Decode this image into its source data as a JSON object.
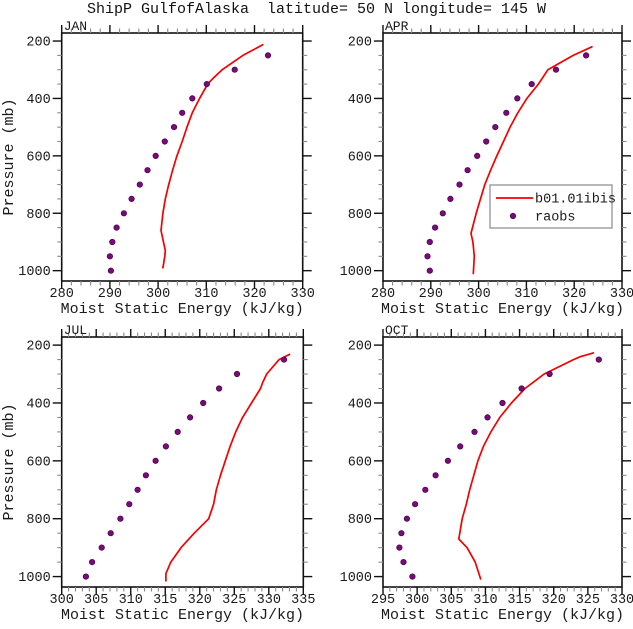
{
  "title": "ShipP GulfofAlaska  latitude= 50 N longitude= 145 W",
  "colors": {
    "model_line": "#f40000",
    "raobs_dot": "#7a0b7a",
    "raobs_dot_edge": "#4d074d",
    "axis": "#111111",
    "minor_tick": "#8a8a8a",
    "legend_border": "#a0a0a0",
    "text": "#1a1a1a"
  },
  "legend": {
    "location": "inside APR panel, middle-right",
    "entries": [
      {
        "label": "b01.01ibis",
        "type": "line"
      },
      {
        "label": "raobs",
        "type": "dot"
      }
    ]
  },
  "chart_data": [
    {
      "type": "line",
      "title": "JAN",
      "xlabel": "Moist Static Energy (kJ/kg)",
      "ylabel": "Pressure (mb)",
      "xlim": [
        280,
        330
      ],
      "xtick_major": 10,
      "xtick_minor": 2,
      "ylim": [
        172,
        1036
      ],
      "y_reversed_axis": true,
      "yticks": [
        200,
        400,
        600,
        800,
        1000
      ],
      "ytick_minor": 50,
      "series": [
        {
          "name": "b01.01ibis",
          "type": "line",
          "points": [
            [
              990,
              301.0
            ],
            [
              950,
              301.4
            ],
            [
              930,
              301.5
            ],
            [
              860,
              300.6
            ],
            [
              800,
              301.0
            ],
            [
              750,
              301.5
            ],
            [
              700,
              302.2
            ],
            [
              650,
              303.0
            ],
            [
              600,
              303.9
            ],
            [
              550,
              305.0
            ],
            [
              500,
              306.0
            ],
            [
              450,
              307.1
            ],
            [
              400,
              308.6
            ],
            [
              350,
              310.3
            ],
            [
              330,
              311.4
            ],
            [
              300,
              313.3
            ],
            [
              250,
              317.6
            ],
            [
              213,
              321.7
            ]
          ]
        },
        {
          "name": "raobs",
          "type": "scatter",
          "points": [
            [
              1000,
              290.2
            ],
            [
              950,
              290.0
            ],
            [
              900,
              290.5
            ],
            [
              850,
              291.4
            ],
            [
              800,
              292.9
            ],
            [
              750,
              294.5
            ],
            [
              700,
              296.2
            ],
            [
              650,
              297.8
            ],
            [
              600,
              299.5
            ],
            [
              550,
              301.4
            ],
            [
              500,
              303.3
            ],
            [
              450,
              305.0
            ],
            [
              400,
              307.1
            ],
            [
              350,
              310.1
            ],
            [
              300,
              315.9
            ],
            [
              250,
              322.8
            ]
          ]
        }
      ]
    },
    {
      "type": "line",
      "title": "APR",
      "xlabel": "Moist Static Energy (kJ/kg)",
      "ylabel": "",
      "xlim": [
        280,
        330
      ],
      "xtick_major": 10,
      "xtick_minor": 2,
      "ylim": [
        172,
        1036
      ],
      "y_reversed_axis": true,
      "yticks": [
        200,
        400,
        600,
        800,
        1000
      ],
      "ytick_minor": 50,
      "series": [
        {
          "name": "b01.01ibis",
          "type": "line",
          "points": [
            [
              1010,
              298.9
            ],
            [
              950,
              299.1
            ],
            [
              900,
              298.8
            ],
            [
              870,
              298.4
            ],
            [
              800,
              299.5
            ],
            [
              750,
              300.4
            ],
            [
              700,
              301.3
            ],
            [
              650,
              302.5
            ],
            [
              600,
              303.8
            ],
            [
              550,
              305.2
            ],
            [
              500,
              306.6
            ],
            [
              450,
              308.2
            ],
            [
              400,
              310.1
            ],
            [
              350,
              312.5
            ],
            [
              300,
              314.5
            ],
            [
              250,
              319.8
            ],
            [
              220,
              323.7
            ]
          ]
        },
        {
          "name": "raobs",
          "type": "scatter",
          "points": [
            [
              1000,
              289.8
            ],
            [
              950,
              289.3
            ],
            [
              900,
              289.8
            ],
            [
              850,
              290.9
            ],
            [
              800,
              292.5
            ],
            [
              750,
              294.1
            ],
            [
              700,
              296.0
            ],
            [
              650,
              297.7
            ],
            [
              600,
              299.7
            ],
            [
              550,
              301.6
            ],
            [
              500,
              303.5
            ],
            [
              450,
              305.8
            ],
            [
              400,
              308.1
            ],
            [
              350,
              311.1
            ],
            [
              300,
              316.2
            ],
            [
              250,
              322.5
            ]
          ]
        }
      ]
    },
    {
      "type": "line",
      "title": "JUL",
      "xlabel": "Moist Static Energy (kJ/kg)",
      "ylabel": "Pressure (mb)",
      "xlim": [
        300,
        335
      ],
      "xtick_major": 5,
      "xtick_minor": 1,
      "ylim": [
        172,
        1036
      ],
      "y_reversed_axis": true,
      "yticks": [
        200,
        400,
        600,
        800,
        1000
      ],
      "ytick_minor": 50,
      "series": [
        {
          "name": "b01.01ibis",
          "type": "line",
          "points": [
            [
              1015,
              315.1
            ],
            [
              990,
              315.1
            ],
            [
              950,
              315.8
            ],
            [
              900,
              317.3
            ],
            [
              850,
              319.2
            ],
            [
              800,
              321.3
            ],
            [
              750,
              322.0
            ],
            [
              700,
              322.4
            ],
            [
              650,
              323.0
            ],
            [
              600,
              323.7
            ],
            [
              550,
              324.4
            ],
            [
              500,
              325.2
            ],
            [
              450,
              326.2
            ],
            [
              400,
              327.5
            ],
            [
              350,
              328.8
            ],
            [
              330,
              329.1
            ],
            [
              300,
              329.7
            ],
            [
              250,
              331.5
            ],
            [
              232,
              333.0
            ]
          ]
        },
        {
          "name": "raobs",
          "type": "scatter",
          "points": [
            [
              1000,
              303.5
            ],
            [
              950,
              304.4
            ],
            [
              900,
              305.8
            ],
            [
              850,
              307.1
            ],
            [
              800,
              308.5
            ],
            [
              750,
              309.8
            ],
            [
              700,
              311.0
            ],
            [
              650,
              312.2
            ],
            [
              600,
              313.6
            ],
            [
              550,
              315.1
            ],
            [
              500,
              316.8
            ],
            [
              450,
              318.6
            ],
            [
              400,
              320.5
            ],
            [
              350,
              322.8
            ],
            [
              300,
              325.4
            ],
            [
              250,
              332.2
            ]
          ]
        }
      ]
    },
    {
      "type": "line",
      "title": "OCT",
      "xlabel": "Moist Static Energy (kJ/kg)",
      "ylabel": "",
      "xlim": [
        295,
        330
      ],
      "xtick_major": 5,
      "xtick_minor": 1,
      "ylim": [
        172,
        1036
      ],
      "y_reversed_axis": true,
      "yticks": [
        200,
        400,
        600,
        800,
        1000
      ],
      "ytick_minor": 50,
      "series": [
        {
          "name": "b01.01ibis",
          "type": "line",
          "points": [
            [
              1008,
              309.3
            ],
            [
              950,
              308.5
            ],
            [
              900,
              307.3
            ],
            [
              870,
              306.1
            ],
            [
              800,
              306.6
            ],
            [
              750,
              307.2
            ],
            [
              700,
              307.7
            ],
            [
              650,
              308.3
            ],
            [
              600,
              308.9
            ],
            [
              550,
              309.7
            ],
            [
              500,
              310.8
            ],
            [
              450,
              312.1
            ],
            [
              400,
              313.8
            ],
            [
              350,
              315.8
            ],
            [
              300,
              318.6
            ],
            [
              250,
              322.9
            ],
            [
              240,
              323.9
            ],
            [
              227,
              325.8
            ]
          ]
        },
        {
          "name": "raobs",
          "type": "scatter",
          "points": [
            [
              1000,
              299.3
            ],
            [
              950,
              298.0
            ],
            [
              900,
              297.4
            ],
            [
              850,
              297.7
            ],
            [
              800,
              298.5
            ],
            [
              750,
              299.7
            ],
            [
              700,
              301.2
            ],
            [
              650,
              302.7
            ],
            [
              600,
              304.5
            ],
            [
              550,
              306.3
            ],
            [
              500,
              308.4
            ],
            [
              450,
              310.3
            ],
            [
              400,
              312.5
            ],
            [
              350,
              315.3
            ],
            [
              300,
              319.4
            ],
            [
              250,
              326.6
            ]
          ]
        }
      ]
    }
  ]
}
